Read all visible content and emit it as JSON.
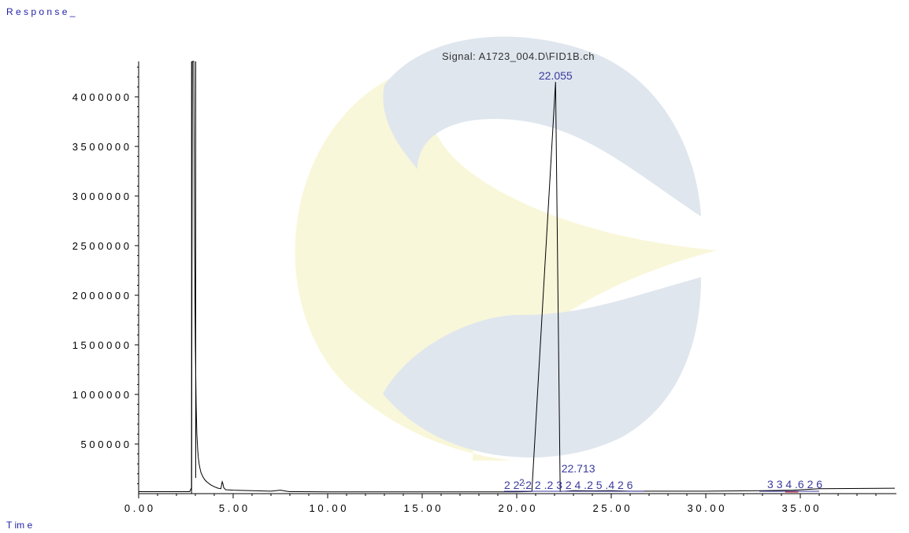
{
  "header": {
    "y_axis_title": "R e s p o n s e _"
  },
  "footer": {
    "x_axis_title": "T im  e"
  },
  "signal_title": "Signal: A1723_004.D\\FID1B.ch",
  "chart_data": {
    "type": "line",
    "title": "Signal: A1723_004.D\\FID1B.ch",
    "ylabel": "R e s p o n s e _",
    "xlabel": "T im  e",
    "xlim": [
      0,
      40
    ],
    "ylim": [
      0,
      4400000
    ],
    "x_ticks": [
      0,
      5,
      10,
      15,
      20,
      25,
      30,
      35
    ],
    "x_tick_labels": [
      "0 . 0 0",
      "5 . 0 0",
      "1 0 . 0 0",
      "1 5 . 0 0",
      "2 0 . 0 0",
      "2 5 . 0 0",
      "3 0 . 0 0",
      "3 5 . 0 0"
    ],
    "y_ticks": [
      500000,
      1000000,
      1500000,
      2000000,
      2500000,
      3000000,
      3500000,
      4000000
    ],
    "y_tick_labels": [
      "5 0 0 0 0 0",
      "1 0 0 0 0 0 0",
      "1 5 0 0 0 0 0",
      "2 0 0 0 0 0 0",
      "2 5 0 0 0 0 0",
      "3 0 0 0 0 0 0",
      "3 5 0 0 0 0 0",
      "4 0 0 0 0 0 0"
    ],
    "grid": false,
    "series": [
      {
        "x": [
          0,
          2.7,
          2.8,
          2.84,
          2.88,
          2.92,
          2.96,
          3.0,
          3.04,
          3.08,
          3.12,
          3.16,
          3.2,
          3.25,
          3.3,
          3.4,
          3.5,
          3.6,
          3.8,
          4.0,
          4.2,
          4.35,
          4.42,
          4.46,
          4.5,
          4.6,
          5.0,
          6.0,
          7.0,
          7.5,
          7.8,
          8.0,
          10.0,
          20.0,
          20.8,
          22.055,
          22.3,
          23.0,
          24.0,
          25.0,
          26.0,
          30.0,
          33.0,
          34.626,
          36.0,
          40.0
        ],
        "y": [
          20000,
          20000,
          60000,
          4400000,
          4400000,
          4400000,
          2500000,
          1500000,
          900000,
          600000,
          450000,
          360000,
          300000,
          250000,
          210000,
          170000,
          140000,
          120000,
          90000,
          70000,
          55000,
          50000,
          120000,
          100000,
          60000,
          40000,
          35000,
          30000,
          25000,
          35000,
          25000,
          20000,
          18000,
          18000,
          22000,
          4150000,
          22000,
          30000,
          28000,
          30000,
          25000,
          25000,
          30000,
          35000,
          50000,
          55000
        ]
      }
    ],
    "peaks": [
      {
        "x": 22.055,
        "label": "22.055"
      },
      {
        "x": 22.713,
        "label": "22.713"
      },
      {
        "x": 25.426,
        "label": "2 2 :2 2 .2 3 2 4 .2 5 .4 2 6"
      },
      {
        "x": 34.626,
        "label": "3 3 4 .6 2 6"
      }
    ],
    "overlap_mark": "2",
    "colors": {
      "trace": "#000000",
      "peak_label": "#3a3a9e",
      "axis_title": "#1e1ea8",
      "axis": "#000000",
      "watermark_blue": "#dfe6ee",
      "watermark_yellow": "#f9f7d9",
      "baseline_dash": "#d22020"
    }
  }
}
